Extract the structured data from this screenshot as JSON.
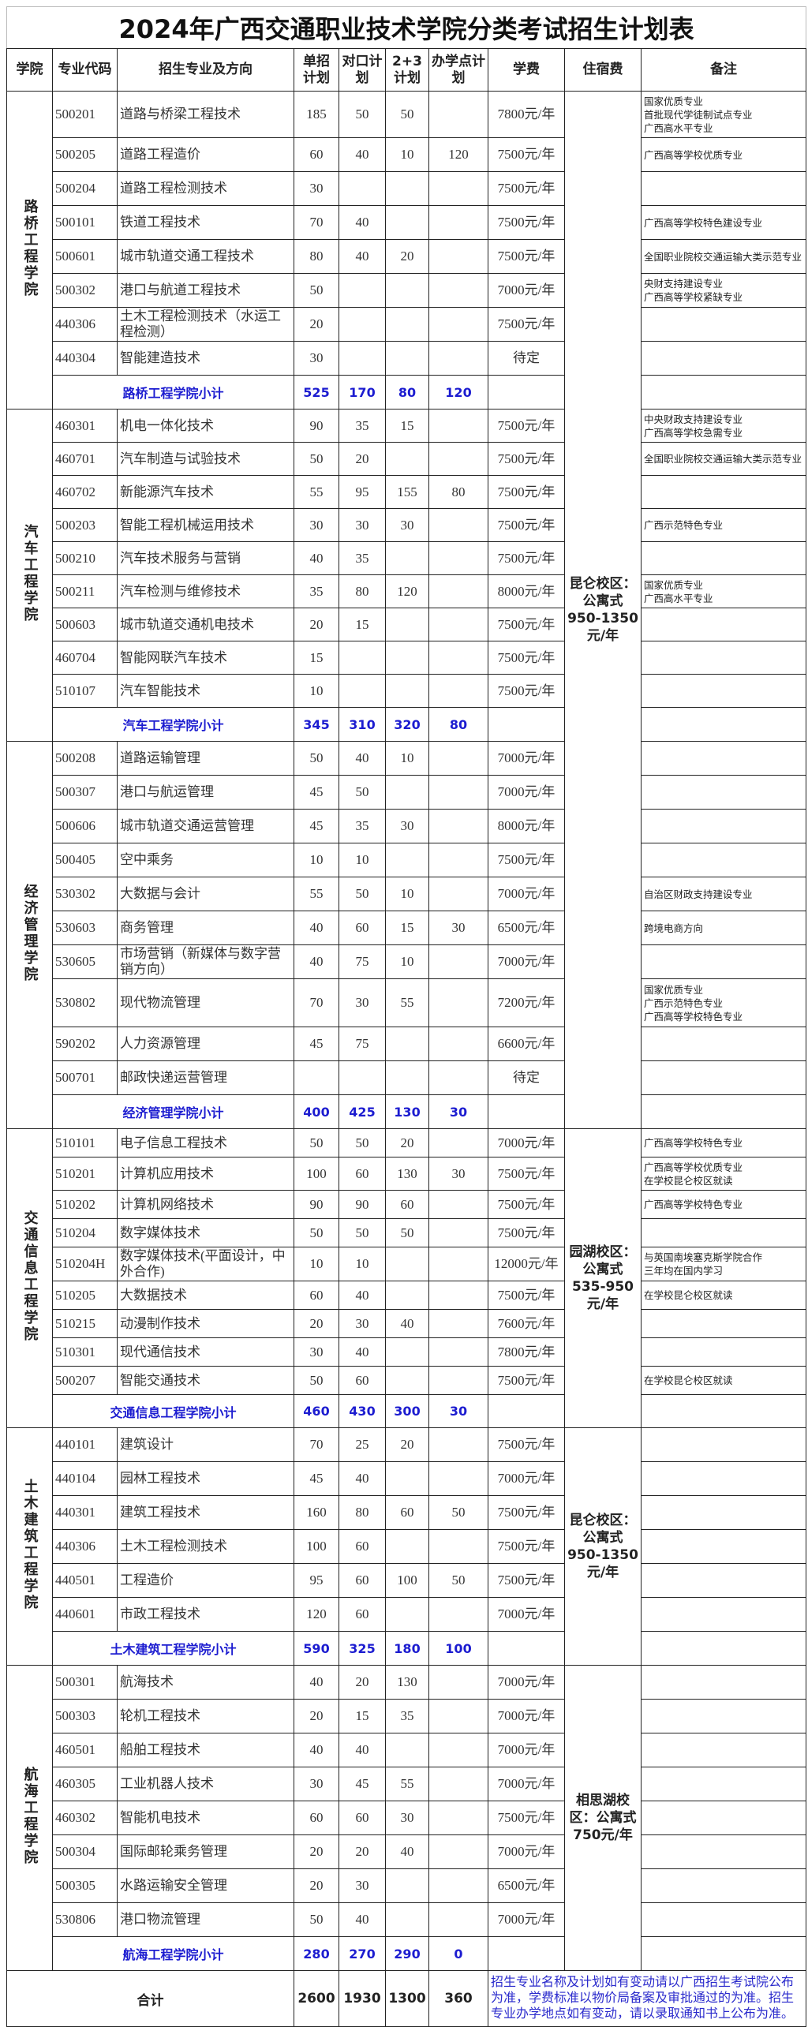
{
  "title": "2024年广西交通职业技术学院分类考试招生计划表",
  "headers": [
    "学院",
    "专业代码",
    "招生专业及方向",
    "单招计划",
    "对口计划",
    "2+3计划",
    "办学点计划",
    "学费",
    "住宿费",
    "备注"
  ],
  "sections": [
    {
      "college": "路桥工程学院",
      "rows": [
        [
          "500201",
          "道路与桥梁工程技术",
          "185",
          "50",
          "50",
          "",
          "7800元/年",
          [
            "国家优质专业",
            "首批现代学徒制试点专业",
            "广西高水平专业"
          ]
        ],
        [
          "500205",
          "道路工程造价",
          "60",
          "40",
          "10",
          "120",
          "7500元/年",
          [
            "广西高等学校优质专业"
          ]
        ],
        [
          "500204",
          "道路工程检测技术",
          "30",
          "",
          "",
          "",
          "7500元/年",
          []
        ],
        [
          "500101",
          "铁道工程技术",
          "70",
          "40",
          "",
          "",
          "7500元/年",
          [
            "广西高等学校特色建设专业"
          ]
        ],
        [
          "500601",
          "城市轨道交通工程技术",
          "80",
          "40",
          "20",
          "",
          "7500元/年",
          [
            "全国职业院校交通运输大类示范专业"
          ]
        ],
        [
          "500302",
          "港口与航道工程技术",
          "50",
          "",
          "",
          "",
          "7000元/年",
          [
            "央财支持建设专业",
            "广西高等学校紧缺专业"
          ]
        ],
        [
          "440306",
          "土木工程检测技术（水运工程检测）",
          "20",
          "",
          "",
          "",
          "7500元/年",
          []
        ],
        [
          "440304",
          "智能建造技术",
          "30",
          "",
          "",
          "",
          "待定",
          []
        ]
      ],
      "subtotal": {
        "label": "路桥工程学院小计",
        "values": [
          "525",
          "170",
          "80",
          "120"
        ]
      }
    },
    {
      "college": "汽车工程学院",
      "rows": [
        [
          "460301",
          "机电一体化技术",
          "90",
          "35",
          "15",
          "",
          "7500元/年",
          [
            "中央财政支持建设专业",
            "广西高等学校急需专业"
          ]
        ],
        [
          "460701",
          "汽车制造与试验技术",
          "50",
          "20",
          "",
          "",
          "7500元/年",
          [
            "全国职业院校交通运输大类示范专业"
          ]
        ],
        [
          "460702",
          "新能源汽车技术",
          "55",
          "95",
          "155",
          "80",
          "7500元/年",
          []
        ],
        [
          "500203",
          "智能工程机械运用技术",
          "30",
          "30",
          "30",
          "",
          "7500元/年",
          [
            "广西示范特色专业"
          ]
        ],
        [
          "500210",
          "汽车技术服务与营销",
          "40",
          "35",
          "",
          "",
          "7500元/年",
          []
        ],
        [
          "500211",
          "汽车检测与维修技术",
          "35",
          "80",
          "120",
          "",
          "8000元/年",
          [
            "国家优质专业",
            "广西高水平专业"
          ]
        ],
        [
          "500603",
          "城市轨道交通机电技术",
          "20",
          "15",
          "",
          "",
          "7500元/年",
          []
        ],
        [
          "460704",
          "智能网联汽车技术",
          "15",
          "",
          "",
          "",
          "7500元/年",
          []
        ],
        [
          "510107",
          "汽车智能技术",
          "10",
          "",
          "",
          "",
          "7500元/年",
          []
        ]
      ],
      "subtotal": {
        "label": "汽车工程学院小计",
        "values": [
          "345",
          "310",
          "320",
          "80"
        ]
      }
    },
    {
      "college": "经济管理学院",
      "rows": [
        [
          "500208",
          "道路运输管理",
          "50",
          "40",
          "10",
          "",
          "7000元/年",
          []
        ],
        [
          "500307",
          "港口与航运管理",
          "45",
          "50",
          "",
          "",
          "7000元/年",
          []
        ],
        [
          "500606",
          "城市轨道交通运营管理",
          "45",
          "35",
          "30",
          "",
          "8000元/年",
          []
        ],
        [
          "500405",
          "空中乘务",
          "10",
          "10",
          "",
          "",
          "7500元/年",
          []
        ],
        [
          "530302",
          "大数据与会计",
          "55",
          "50",
          "10",
          "",
          "7000元/年",
          [
            "自治区财政支持建设专业"
          ]
        ],
        [
          "530603",
          "商务管理",
          "40",
          "60",
          "15",
          "30",
          "6500元/年",
          [
            "跨境电商方向"
          ]
        ],
        [
          "530605",
          "市场营销（新媒体与数字营销方向）",
          "40",
          "75",
          "10",
          "",
          "7000元/年",
          []
        ],
        [
          "530802",
          "现代物流管理",
          "70",
          "30",
          "55",
          "",
          "7200元/年",
          [
            "国家优质专业",
            "广西示范特色专业",
            "广西高等学校特色专业"
          ]
        ],
        [
          "590202",
          "人力资源管理",
          "45",
          "75",
          "",
          "",
          "6600元/年",
          []
        ],
        [
          "500701",
          "邮政快递运营管理",
          "",
          "",
          "",
          "",
          "待定",
          []
        ]
      ],
      "subtotal": {
        "label": "经济管理学院小计",
        "values": [
          "400",
          "425",
          "130",
          "30"
        ]
      }
    },
    {
      "college": "交通信息工程学院",
      "rows": [
        [
          "510101",
          "电子信息工程技术",
          "50",
          "50",
          "20",
          "",
          "7000元/年",
          [
            "广西高等学校特色专业"
          ]
        ],
        [
          "510201",
          "计算机应用技术",
          "100",
          "60",
          "130",
          "30",
          "7500元/年",
          [
            "广西高等学校优质专业",
            "在学校昆仑校区就读"
          ]
        ],
        [
          "510202",
          "计算机网络技术",
          "90",
          "90",
          "60",
          "",
          "7500元/年",
          [
            "广西高等学校特色专业"
          ]
        ],
        [
          "510204",
          "数字媒体技术",
          "50",
          "50",
          "50",
          "",
          "7500元/年",
          []
        ],
        [
          "510204H",
          "数字媒体技术(平面设计，中外合作)",
          "10",
          "10",
          "",
          "",
          "12000元/年",
          [
            "与英国南埃塞克斯学院合作",
            "三年均在国内学习"
          ]
        ],
        [
          "510205",
          "大数据技术",
          "60",
          "40",
          "",
          "",
          "7500元/年",
          [
            "在学校昆仑校区就读"
          ]
        ],
        [
          "510215",
          "动漫制作技术",
          "20",
          "30",
          "40",
          "",
          "7600元/年",
          []
        ],
        [
          "510301",
          "现代通信技术",
          "30",
          "40",
          "",
          "",
          "7800元/年",
          []
        ],
        [
          "500207",
          "智能交通技术",
          "50",
          "60",
          "",
          "",
          "7500元/年",
          [
            "在学校昆仑校区就读"
          ]
        ]
      ],
      "subtotal": {
        "label": "交通信息工程学院小计",
        "values": [
          "460",
          "430",
          "300",
          "30"
        ]
      }
    },
    {
      "college": "土木建筑工程学院",
      "rows": [
        [
          "440101",
          "建筑设计",
          "70",
          "25",
          "20",
          "",
          "7500元/年",
          []
        ],
        [
          "440104",
          "园林工程技术",
          "45",
          "40",
          "",
          "",
          "7000元/年",
          []
        ],
        [
          "440301",
          "建筑工程技术",
          "160",
          "80",
          "60",
          "50",
          "7500元/年",
          []
        ],
        [
          "440306",
          "土木工程检测技术",
          "100",
          "60",
          "",
          "",
          "7500元/年",
          []
        ],
        [
          "440501",
          "工程造价",
          "95",
          "60",
          "100",
          "50",
          "7500元/年",
          []
        ],
        [
          "440601",
          "市政工程技术",
          "120",
          "60",
          "",
          "",
          "7000元/年",
          []
        ]
      ],
      "subtotal": {
        "label": "土木建筑工程学院小计",
        "values": [
          "590",
          "325",
          "180",
          "100"
        ]
      }
    },
    {
      "college": "航海工程学院",
      "rows": [
        [
          "500301",
          "航海技术",
          "40",
          "20",
          "130",
          "",
          "7000元/年",
          []
        ],
        [
          "500303",
          "轮机工程技术",
          "20",
          "15",
          "35",
          "",
          "7000元/年",
          []
        ],
        [
          "460501",
          "船舶工程技术",
          "40",
          "40",
          "",
          "",
          "7000元/年",
          []
        ],
        [
          "460305",
          "工业机器人技术",
          "30",
          "45",
          "55",
          "",
          "7000元/年",
          []
        ],
        [
          "460302",
          "智能机电技术",
          "60",
          "60",
          "30",
          "",
          "7500元/年",
          []
        ],
        [
          "500304",
          "国际邮轮乘务管理",
          "20",
          "20",
          "40",
          "",
          "7000元/年",
          []
        ],
        [
          "500305",
          "水路运输安全管理",
          "20",
          "30",
          "",
          "",
          "6500元/年",
          []
        ],
        [
          "530806",
          "港口物流管理",
          "50",
          "40",
          "",
          "",
          "7000元/年",
          []
        ]
      ],
      "subtotal": {
        "label": "航海工程学院小计",
        "values": [
          "280",
          "270",
          "290",
          "0"
        ]
      }
    }
  ],
  "accommodation": [
    {
      "text": "昆仑校区：公寓式950-1350元/年",
      "sections": [
        0,
        1,
        2
      ]
    },
    {
      "text": "园湖校区：公寓式535-950元/年",
      "sections": [
        3
      ]
    },
    {
      "text": "昆仑校区：公寓式950-1350元/年",
      "sections": [
        4
      ]
    },
    {
      "text": "相思湖校区：公寓式750元/年",
      "sections": [
        5
      ]
    }
  ],
  "total": {
    "label": "合计",
    "values": [
      "2600",
      "1930",
      "1300",
      "360"
    ],
    "note": "招生专业名称及计划如有变动请以广西招生考试院公布为准，学费标准以物价局备案及审批通过的为准。招生专业办学地点如有变动，请以录取通知书上公布为准。"
  },
  "colors": {
    "subtotal": "#1c1cd0",
    "note": "#2a2acc",
    "border": "#222222"
  }
}
